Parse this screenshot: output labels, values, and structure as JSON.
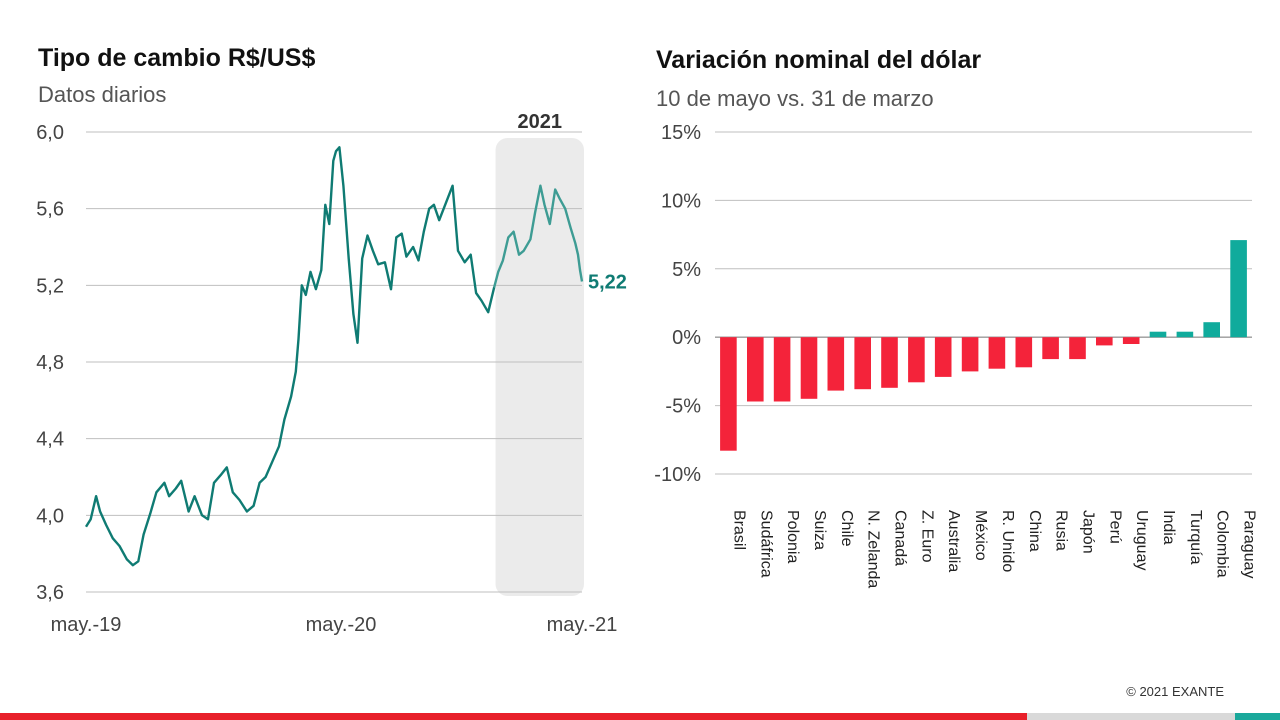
{
  "footer": {
    "copyright": "© 2021 EXANTE",
    "colors": [
      "#e8202a",
      "#d9d9d9",
      "#1aa89b"
    ]
  },
  "chart_data": [
    {
      "type": "line",
      "title": "Tipo de cambio R$/US$",
      "subtitle": "Datos diarios",
      "ylim": [
        3.6,
        6.0
      ],
      "yticks": [
        "3,6",
        "4,0",
        "4,4",
        "4,8",
        "5,2",
        "5,6",
        "6,0"
      ],
      "ytick_values": [
        3.6,
        4.0,
        4.4,
        4.8,
        5.2,
        5.6,
        6.0
      ],
      "xticks": [
        "may.-19",
        "may.-20",
        "may.-21"
      ],
      "xlim": [
        "2019-05-01",
        "2021-05-10"
      ],
      "grid": true,
      "highlight": {
        "label": "2021",
        "from": "2021-01-01",
        "to": "2021-05-10",
        "color": "#ebebeb"
      },
      "end_label": "5,22",
      "line_color": "#0f7b73",
      "highlight_line_color": "#3e9c94",
      "series": [
        {
          "x": [
            "2019-05-01",
            "2019-05-08",
            "2019-05-16",
            "2019-05-22",
            "2019-05-31",
            "2019-06-10",
            "2019-06-20",
            "2019-07-01",
            "2019-07-10",
            "2019-07-18",
            "2019-07-26",
            "2019-08-05",
            "2019-08-14",
            "2019-08-26",
            "2019-09-02",
            "2019-09-12",
            "2019-09-20",
            "2019-10-01",
            "2019-10-10",
            "2019-10-21",
            "2019-10-30",
            "2019-11-08",
            "2019-11-18",
            "2019-11-27",
            "2019-12-06",
            "2019-12-16",
            "2019-12-27",
            "2020-01-06",
            "2020-01-15",
            "2020-01-24",
            "2020-02-03",
            "2020-02-13",
            "2020-02-21",
            "2020-03-02",
            "2020-03-09",
            "2020-03-13",
            "2020-03-18",
            "2020-03-24",
            "2020-03-31",
            "2020-04-08",
            "2020-04-16",
            "2020-04-22",
            "2020-04-28",
            "2020-05-04",
            "2020-05-08",
            "2020-05-13",
            "2020-05-19",
            "2020-05-27",
            "2020-06-03",
            "2020-06-09",
            "2020-06-16",
            "2020-06-24",
            "2020-07-02",
            "2020-07-10",
            "2020-07-20",
            "2020-07-29",
            "2020-08-06",
            "2020-08-14",
            "2020-08-21",
            "2020-08-31",
            "2020-09-08",
            "2020-09-16",
            "2020-09-24",
            "2020-10-01",
            "2020-10-09",
            "2020-10-19",
            "2020-10-29",
            "2020-11-06",
            "2020-11-16",
            "2020-11-25",
            "2020-12-03",
            "2020-12-11",
            "2020-12-21",
            "2020-12-30",
            "2021-01-05",
            "2021-01-12",
            "2021-01-20",
            "2021-01-28",
            "2021-02-05",
            "2021-02-12",
            "2021-02-22",
            "2021-03-01",
            "2021-03-09",
            "2021-03-15",
            "2021-03-23",
            "2021-03-31",
            "2021-04-07",
            "2021-04-15",
            "2021-04-23",
            "2021-04-30",
            "2021-05-04",
            "2021-05-07",
            "2021-05-10"
          ],
          "y": [
            3.94,
            3.98,
            4.1,
            4.02,
            3.95,
            3.88,
            3.84,
            3.77,
            3.74,
            3.76,
            3.9,
            4.01,
            4.12,
            4.17,
            4.1,
            4.14,
            4.18,
            4.02,
            4.1,
            4.0,
            3.98,
            4.17,
            4.21,
            4.25,
            4.12,
            4.08,
            4.02,
            4.05,
            4.17,
            4.2,
            4.28,
            4.36,
            4.5,
            4.62,
            4.75,
            4.92,
            5.2,
            5.15,
            5.27,
            5.18,
            5.28,
            5.62,
            5.52,
            5.85,
            5.9,
            5.92,
            5.72,
            5.34,
            5.05,
            4.9,
            5.34,
            5.46,
            5.38,
            5.31,
            5.32,
            5.18,
            5.45,
            5.47,
            5.35,
            5.4,
            5.33,
            5.48,
            5.6,
            5.62,
            5.54,
            5.63,
            5.72,
            5.38,
            5.32,
            5.36,
            5.16,
            5.12,
            5.06,
            5.19,
            5.27,
            5.33,
            5.45,
            5.48,
            5.36,
            5.38,
            5.44,
            5.58,
            5.72,
            5.62,
            5.52,
            5.7,
            5.65,
            5.6,
            5.5,
            5.42,
            5.36,
            5.28,
            5.22
          ]
        }
      ]
    },
    {
      "type": "bar",
      "title": "Variación nominal del dólar",
      "subtitle": "10 de mayo vs. 31 de marzo",
      "ylim": [
        -10,
        15
      ],
      "yticks": [
        "-10%",
        "-5%",
        "0%",
        "5%",
        "10%",
        "15%"
      ],
      "ytick_values": [
        -10,
        -5,
        0,
        5,
        10,
        15
      ],
      "grid": true,
      "negative_color": "#f4233a",
      "positive_color": "#10ab9c",
      "categories": [
        "Brasil",
        "Sudáfrica",
        "Polonia",
        "Suiza",
        "Chile",
        "N. Zelanda",
        "Canadá",
        "Z. Euro",
        "Australia",
        "México",
        "R. Unido",
        "China",
        "Rusia",
        "Japón",
        "Perú",
        "Uruguay",
        "India",
        "Turquía",
        "Colombia",
        "Paraguay"
      ],
      "values": [
        -8.3,
        -4.7,
        -4.7,
        -4.5,
        -3.9,
        -3.8,
        -3.7,
        -3.3,
        -2.9,
        -2.5,
        -2.3,
        -2.2,
        -1.6,
        -1.6,
        -0.6,
        -0.5,
        0.4,
        0.4,
        1.1,
        7.1
      ]
    }
  ]
}
